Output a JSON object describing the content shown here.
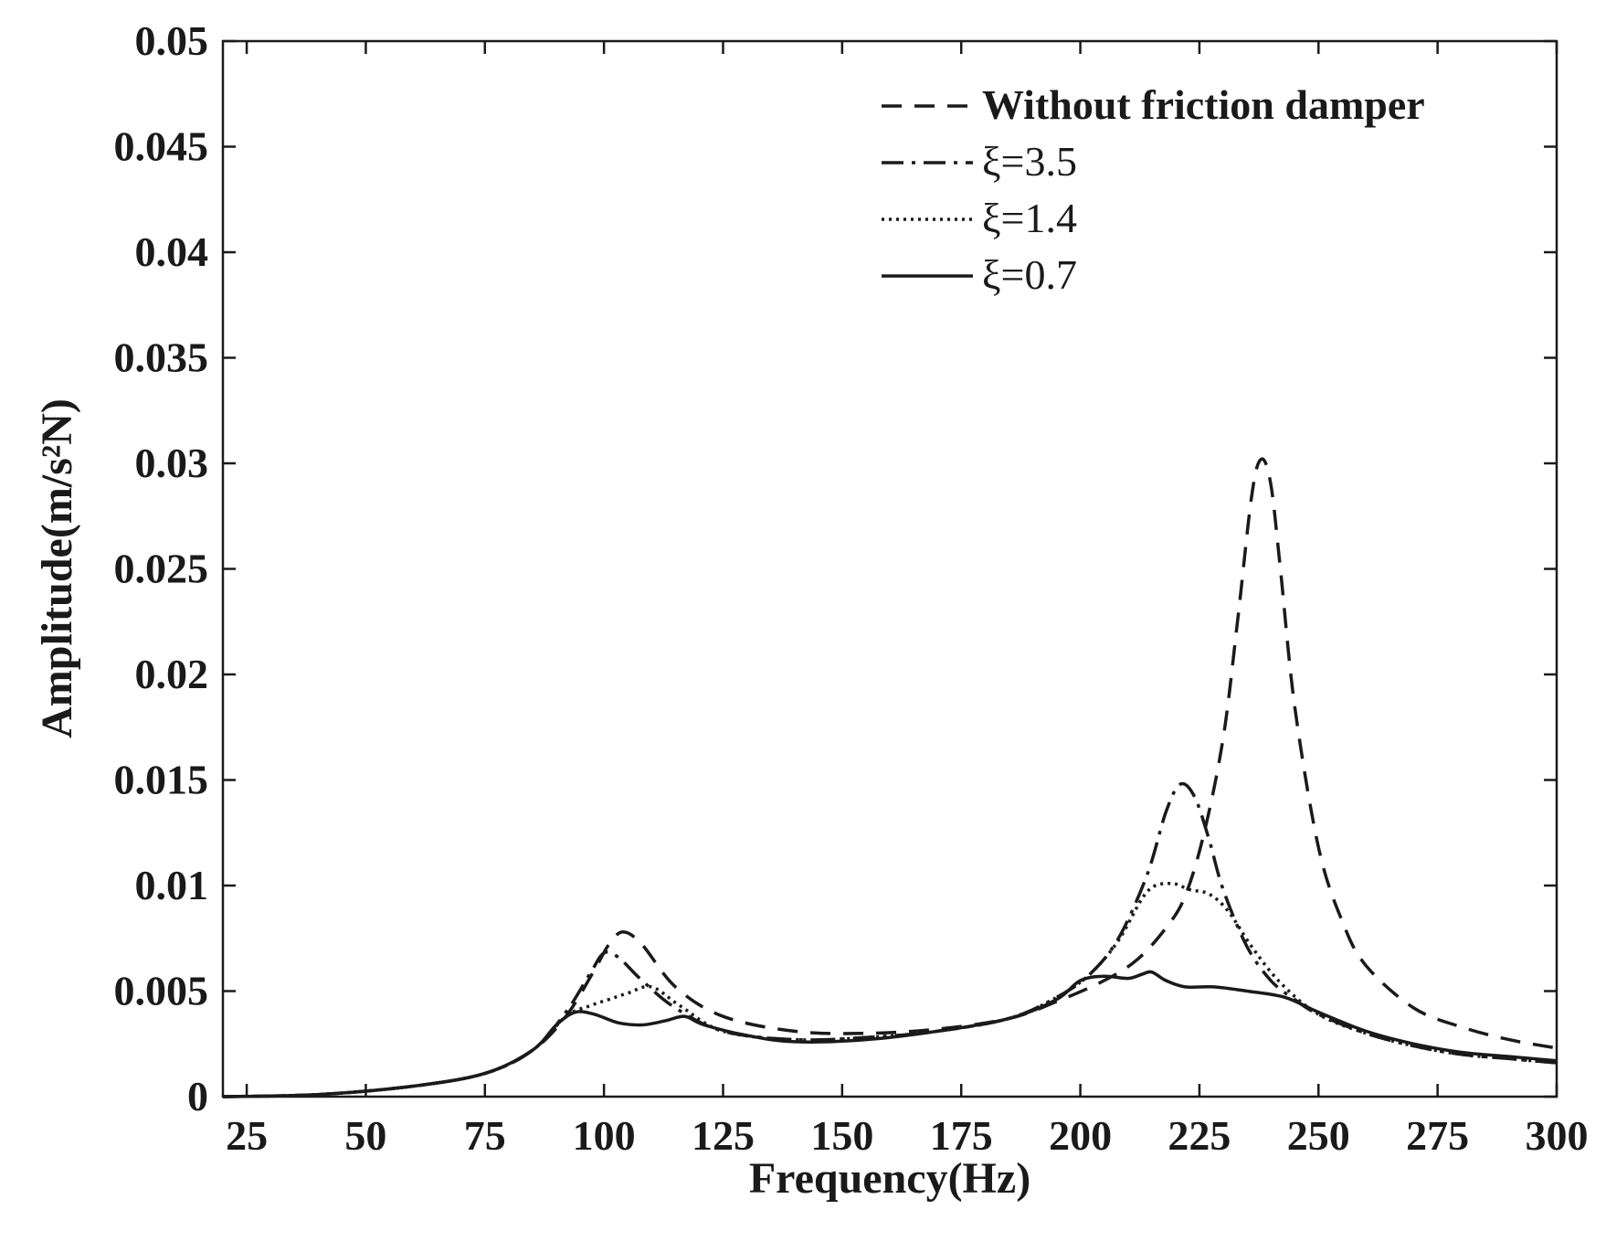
{
  "chart_data": {
    "type": "line",
    "xlabel": "Frequency(Hz)",
    "ylabel": "Amplitude(m/s²N)",
    "xlim": [
      20,
      300
    ],
    "ylim": [
      0,
      0.05
    ],
    "x_ticks": [
      "25",
      "50",
      "75",
      "100",
      "125",
      "150",
      "175",
      "200",
      "225",
      "250",
      "275",
      "300"
    ],
    "y_ticks": [
      "0",
      "0.005",
      "0.01",
      "0.015",
      "0.02",
      "0.025",
      "0.03",
      "0.035",
      "0.04",
      "0.045",
      "0.05"
    ],
    "grid": false,
    "legend_position": "top-right",
    "series": [
      {
        "name": "Without friction damper",
        "style": "dashed",
        "x": [
          20,
          40,
          60,
          75,
          85,
          92,
          98,
          101,
          104,
          108,
          115,
          125,
          140,
          155,
          170,
          185,
          195,
          205,
          212,
          218,
          222,
          226,
          230,
          233,
          236,
          238,
          240,
          242,
          245,
          250,
          255,
          260,
          270,
          280,
          290,
          300
        ],
        "y": [
          0,
          0.0001,
          0.0005,
          0.0011,
          0.0022,
          0.0038,
          0.006,
          0.0072,
          0.0078,
          0.0072,
          0.0052,
          0.0038,
          0.0031,
          0.003,
          0.0032,
          0.0037,
          0.0045,
          0.0055,
          0.0065,
          0.008,
          0.0095,
          0.0125,
          0.017,
          0.0225,
          0.0285,
          0.0302,
          0.029,
          0.025,
          0.0185,
          0.0118,
          0.0083,
          0.0062,
          0.0042,
          0.0033,
          0.0027,
          0.0023
        ]
      },
      {
        "name": "ξ=3.5",
        "style": "dashdot",
        "x": [
          20,
          40,
          60,
          75,
          85,
          92,
          97,
          100,
          103,
          108,
          115,
          125,
          140,
          155,
          170,
          185,
          195,
          202,
          208,
          214,
          218,
          221,
          224,
          227,
          230,
          235,
          240,
          245,
          250,
          260,
          270,
          280,
          290,
          300
        ],
        "y": [
          0,
          0.0001,
          0.0005,
          0.0011,
          0.0022,
          0.004,
          0.0058,
          0.0068,
          0.0066,
          0.0055,
          0.0042,
          0.0031,
          0.0027,
          0.0028,
          0.0031,
          0.0037,
          0.0047,
          0.0058,
          0.0075,
          0.0105,
          0.0135,
          0.0148,
          0.0142,
          0.0122,
          0.0098,
          0.0071,
          0.0055,
          0.0046,
          0.0039,
          0.003,
          0.0024,
          0.002,
          0.0018,
          0.0016
        ]
      },
      {
        "name": "ξ=1.4",
        "style": "dotted",
        "x": [
          20,
          40,
          60,
          75,
          85,
          92,
          97,
          101,
          105,
          110,
          116,
          125,
          140,
          155,
          170,
          185,
          195,
          202,
          208,
          214,
          219,
          223,
          227,
          231,
          236,
          242,
          250,
          260,
          270,
          280,
          290,
          300
        ],
        "y": [
          0,
          0.0001,
          0.0005,
          0.0011,
          0.0022,
          0.0038,
          0.0043,
          0.0046,
          0.0049,
          0.0052,
          0.0043,
          0.0031,
          0.0027,
          0.0028,
          0.0031,
          0.0037,
          0.0047,
          0.0058,
          0.0074,
          0.0097,
          0.0101,
          0.0098,
          0.0096,
          0.0088,
          0.0071,
          0.0054,
          0.0039,
          0.003,
          0.0024,
          0.002,
          0.0018,
          0.0016
        ]
      },
      {
        "name": "ξ=0.7",
        "style": "solid",
        "x": [
          20,
          40,
          60,
          75,
          85,
          90,
          94,
          98,
          103,
          108,
          113,
          117,
          121,
          130,
          140,
          155,
          170,
          185,
          195,
          200,
          205,
          210,
          213,
          215,
          218,
          222,
          228,
          235,
          243,
          250,
          260,
          270,
          280,
          290,
          300
        ],
        "y": [
          0,
          0.0001,
          0.0005,
          0.0011,
          0.0022,
          0.0034,
          0.004,
          0.0039,
          0.0035,
          0.0034,
          0.0036,
          0.0038,
          0.0034,
          0.0029,
          0.0026,
          0.0027,
          0.0031,
          0.0037,
          0.0046,
          0.0055,
          0.0057,
          0.0056,
          0.0058,
          0.0059,
          0.0055,
          0.0052,
          0.0052,
          0.005,
          0.0047,
          0.004,
          0.0031,
          0.0025,
          0.0021,
          0.0019,
          0.0017
        ]
      }
    ]
  }
}
